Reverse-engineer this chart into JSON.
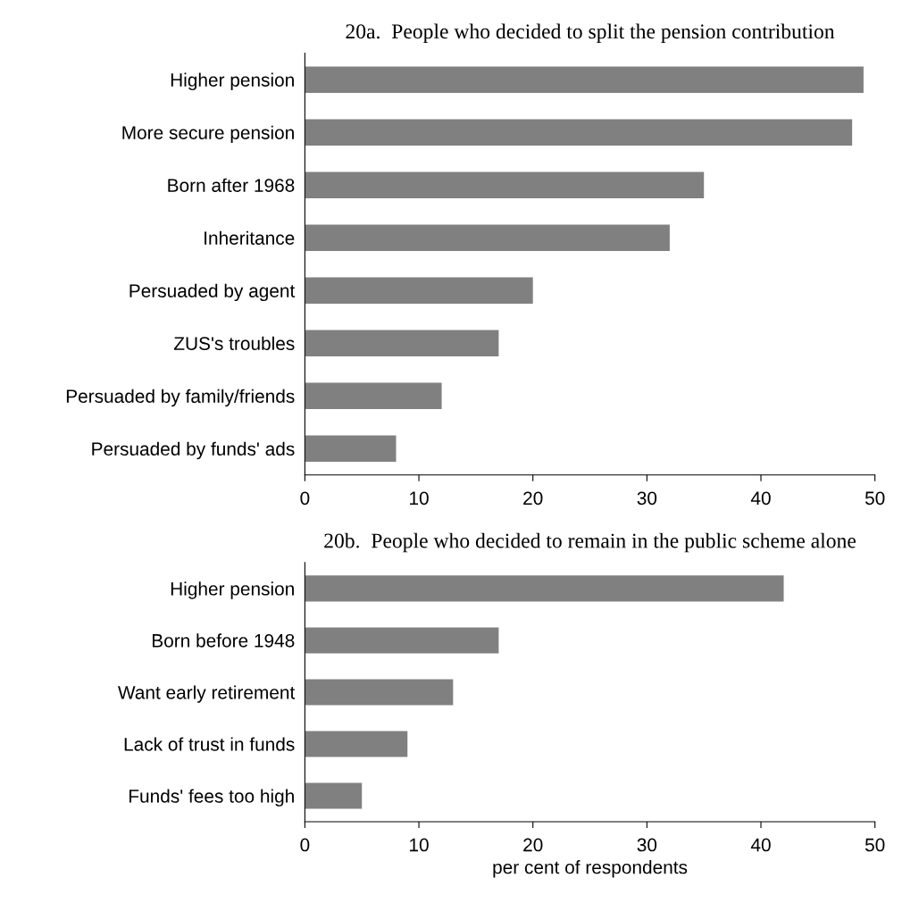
{
  "chart_data": [
    {
      "type": "bar",
      "orientation": "horizontal",
      "title": "20a.  People who decided to split the pension contribution",
      "categories": [
        "Higher pension",
        "More secure pension",
        "Born after 1968",
        "Inheritance",
        "Persuaded by agent",
        "ZUS's troubles",
        "Persuaded by family/friends",
        "Persuaded by funds' ads"
      ],
      "values": [
        49,
        48,
        35,
        32,
        20,
        17,
        12,
        8
      ],
      "color": "#808080",
      "xlim": [
        0,
        50
      ],
      "xticks": [
        0,
        10,
        20,
        30,
        40,
        50
      ],
      "grid": false,
      "legend": false
    },
    {
      "type": "bar",
      "orientation": "horizontal",
      "title": "20b.  People who decided to remain in the public scheme alone",
      "xlabel": "per cent of respondents",
      "categories": [
        "Higher pension",
        "Born before 1948",
        "Want early retirement",
        "Lack of trust in funds",
        "Funds' fees too high"
      ],
      "values": [
        42,
        17,
        13,
        9,
        5
      ],
      "color": "#808080",
      "xlim": [
        0,
        50
      ],
      "xticks": [
        0,
        10,
        20,
        30,
        40,
        50
      ],
      "grid": false,
      "legend": false
    }
  ]
}
